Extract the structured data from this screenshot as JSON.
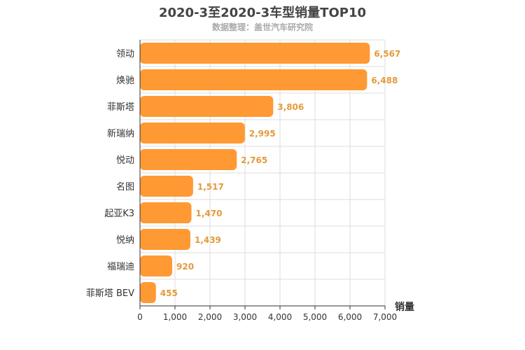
{
  "chart_data": {
    "type": "bar",
    "orientation": "horizontal",
    "title": "2020-3至2020-3车型销量TOP10",
    "subtitle": "数据整理：盖世汽车研究院",
    "xlabel": "销量",
    "categories": [
      "领动",
      "焕驰",
      "菲斯塔",
      "新瑞纳",
      "悦动",
      "名图",
      "起亚K3",
      "悦纳",
      "福瑞迪",
      "菲斯塔 BEV"
    ],
    "values": [
      6567,
      6488,
      3806,
      2995,
      2765,
      1517,
      1470,
      1439,
      920,
      455
    ],
    "value_labels": [
      "6,567",
      "6,488",
      "3,806",
      "2,995",
      "2,765",
      "1,517",
      "1,470",
      "1,439",
      "920",
      "455"
    ],
    "xlim": [
      0,
      7000
    ],
    "xticks": [
      0,
      1000,
      2000,
      3000,
      4000,
      5000,
      6000,
      7000
    ],
    "xtick_labels": [
      "0",
      "1,000",
      "2,000",
      "3,000",
      "4,000",
      "5,000",
      "6,000",
      "7,000"
    ],
    "grid": true,
    "bar_color": "#ff9933",
    "label_color": "#e39a3b"
  }
}
